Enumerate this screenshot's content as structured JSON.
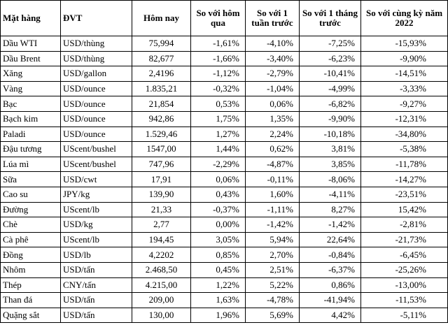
{
  "table": {
    "headers": [
      "Mặt hàng",
      "ĐVT",
      "Hôm nay",
      "So với hôm qua",
      "So với 1 tuần trước",
      "So với 1 tháng trước",
      "So với cùng kỳ năm 2022"
    ],
    "rows": [
      [
        "Dầu WTI",
        "USD/thùng",
        "75,994",
        "-1,61%",
        "-4,10%",
        "-7,25%",
        "-15,93%"
      ],
      [
        "Dầu Brent",
        "USD/thùng",
        "82,677",
        "-1,66%",
        "-3,40%",
        "-6,23%",
        "-9,90%"
      ],
      [
        "Xăng",
        "USD/gallon",
        "2,4196",
        "-1,12%",
        "-2,79%",
        "-10,41%",
        "-14,51%"
      ],
      [
        "Vàng",
        "USD/ounce",
        "1.835,21",
        "-0,32%",
        "-1,04%",
        "-4,99%",
        "-3,33%"
      ],
      [
        "Bạc",
        "USD/ounce",
        "21,854",
        "0,53%",
        "0,06%",
        "-6,82%",
        "-9,27%"
      ],
      [
        "Bạch kim",
        "USD/ounce",
        "942,86",
        "1,75%",
        "1,35%",
        "-9,90%",
        "-12,31%"
      ],
      [
        "Paladi",
        "USD/ounce",
        "1.529,46",
        "1,27%",
        "2,24%",
        "-10,18%",
        "-34,80%"
      ],
      [
        "Đậu tương",
        "UScent/bushel",
        "1547,00",
        "1,44%",
        "0,62%",
        "3,81%",
        "-5,38%"
      ],
      [
        "Lúa mì",
        "UScent/bushel",
        "747,96",
        "-2,29%",
        "-4,87%",
        "3,85%",
        "-11,78%"
      ],
      [
        "Sữa",
        "USD/cwt",
        "17,91",
        "0,06%",
        "-0,11%",
        "-8,06%",
        "-14,27%"
      ],
      [
        "Cao su",
        "JPY/kg",
        "139,90",
        "0,43%",
        "1,60%",
        "-4,11%",
        "-23,51%"
      ],
      [
        "Đường",
        "UScent/lb",
        "21,33",
        "-0,37%",
        "-1,11%",
        "8,27%",
        "15,42%"
      ],
      [
        "Chè",
        "USD/kg",
        "2,77",
        "0,00%",
        "-1,42%",
        "-1,42%",
        "-2,81%"
      ],
      [
        "Cà phê",
        "UScent/lb",
        "194,45",
        "3,05%",
        "5,94%",
        "22,64%",
        "-21,73%"
      ],
      [
        "Đồng",
        "USD/lb",
        "4,2202",
        "0,85%",
        "2,70%",
        "-0,84%",
        "-6,45%"
      ],
      [
        "Nhôm",
        "USD/tấn",
        "2.468,50",
        "0,45%",
        "2,51%",
        "-6,37%",
        "-25,26%"
      ],
      [
        "Thép",
        "CNY/tấn",
        "4.215,00",
        "1,22%",
        "5,22%",
        "0,86%",
        "-13,00%"
      ],
      [
        "Than đá",
        "USD/tấn",
        "209,00",
        "1,63%",
        "-4,78%",
        "-41,94%",
        "-11,53%"
      ],
      [
        "Quặng sắt",
        "USD/tấn",
        "130,00",
        "1,96%",
        "5,69%",
        "4,42%",
        "-5,11%"
      ]
    ]
  }
}
